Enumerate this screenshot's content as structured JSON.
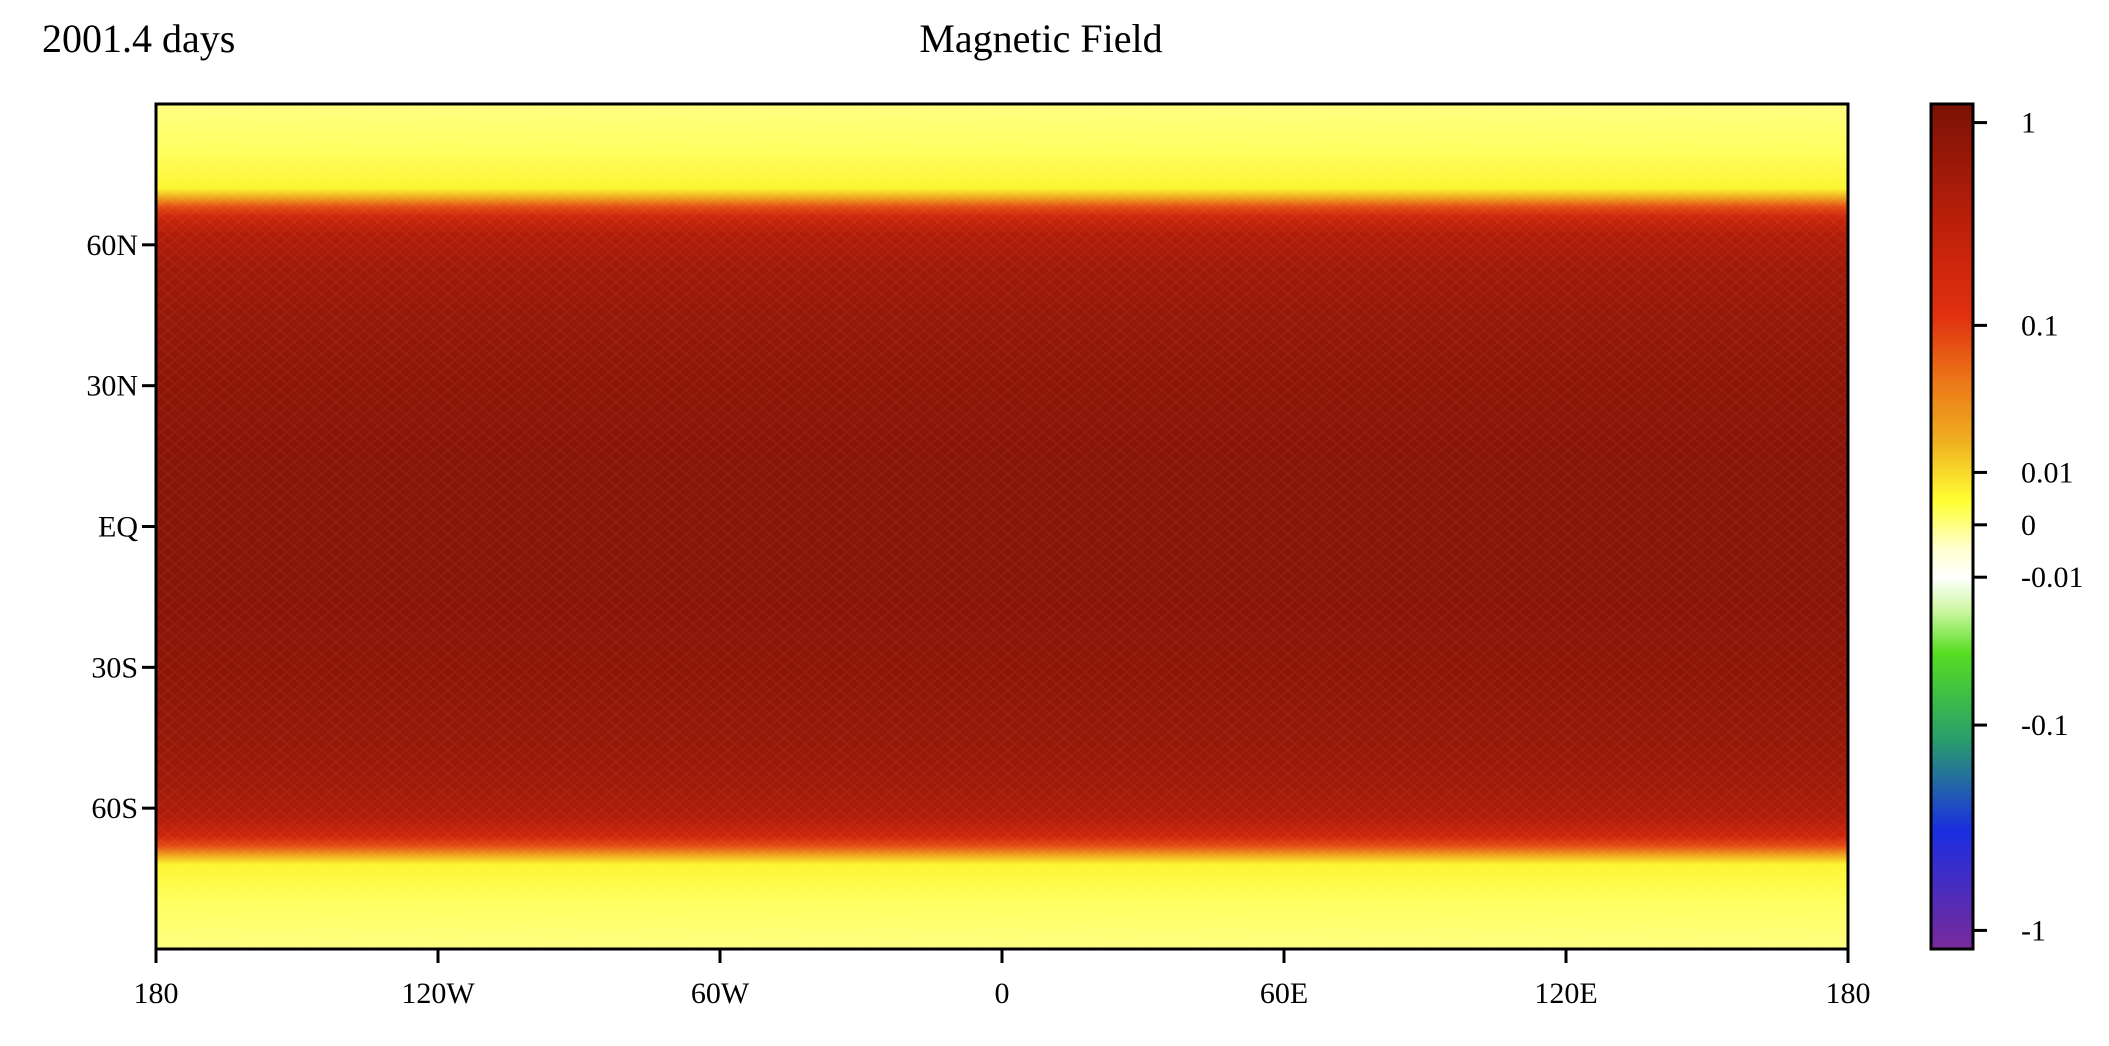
{
  "header": {
    "time_label": "2001.4 days",
    "title": "Magnetic Field"
  },
  "chart_data": {
    "type": "heatmap",
    "title": "Magnetic Field",
    "subtitle": "2001.4 days",
    "xlabel": "",
    "ylabel": "",
    "x_axis": {
      "ticks": [
        {
          "value": -180,
          "label": "180"
        },
        {
          "value": -120,
          "label": "120W"
        },
        {
          "value": -60,
          "label": "60W"
        },
        {
          "value": 0,
          "label": "0"
        },
        {
          "value": 60,
          "label": "60E"
        },
        {
          "value": 120,
          "label": "120E"
        },
        {
          "value": 180,
          "label": "180"
        }
      ],
      "range": [
        -180,
        180
      ]
    },
    "y_axis": {
      "ticks": [
        {
          "value": 60,
          "label": "60N"
        },
        {
          "value": 30,
          "label": "30N"
        },
        {
          "value": 0,
          "label": "EQ"
        },
        {
          "value": -30,
          "label": "30S"
        },
        {
          "value": -60,
          "label": "60S"
        }
      ],
      "range": [
        -90,
        90
      ]
    },
    "field_profile": {
      "description_units": "field value by latitude (zonally near-uniform)",
      "latitude": [
        90,
        80,
        72,
        70,
        68,
        66,
        62,
        55,
        45,
        30,
        15,
        0,
        -15,
        -30,
        -45,
        -55,
        -62,
        -66,
        -68,
        -70,
        -72,
        -80,
        -90
      ],
      "value": [
        0.0,
        0.002,
        0.006,
        0.02,
        0.08,
        0.2,
        0.4,
        0.55,
        0.7,
        0.82,
        0.9,
        0.93,
        0.9,
        0.82,
        0.7,
        0.55,
        0.4,
        0.2,
        0.08,
        0.02,
        0.006,
        0.002,
        0.0
      ]
    },
    "colorbar": {
      "scale": "symmetric-log",
      "ticks": [
        {
          "value": 1,
          "label": "1"
        },
        {
          "value": 0.1,
          "label": "0.1"
        },
        {
          "value": 0.01,
          "label": "0.01"
        },
        {
          "value": 0,
          "label": "0"
        },
        {
          "value": -0.01,
          "label": "-0.01"
        },
        {
          "value": -0.1,
          "label": "-0.1"
        },
        {
          "value": -1,
          "label": "-1"
        }
      ],
      "colors_top_to_bottom": [
        "#7a1206",
        "#d8280a",
        "#ef8a1a",
        "#ffff33",
        "#ffffff",
        "#55dd22",
        "#2aa06a",
        "#1a2ee0",
        "#7a2a9a"
      ]
    },
    "grid": false,
    "legend": "colorbar-right"
  }
}
